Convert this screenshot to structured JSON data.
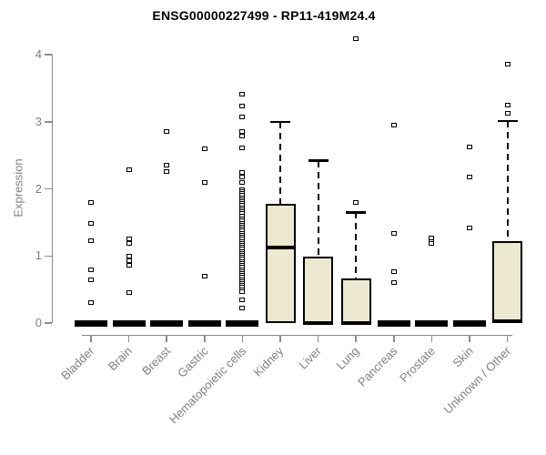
{
  "title": "ENSG00000227499 - RP11-419M24.4",
  "chart_data": {
    "type": "boxplot",
    "title": "ENSG00000227499 - RP11-419M24.4",
    "ylabel": "Expression",
    "xlabel": "",
    "ylim": [
      0,
      4.3
    ],
    "y_ticks": [
      0,
      1,
      2,
      3,
      4
    ],
    "grid": false,
    "legend": null,
    "axis_color": "#8a8a8a",
    "tick_text_color": "#808080",
    "box_fill_color": "#ede8d0",
    "box_border_color": "#000000",
    "categories": [
      "Bladder",
      "Brain",
      "Breast",
      "Gastric",
      "Hematopoietic cells",
      "Kidney",
      "Liver",
      "Lung",
      "Pancreas",
      "Prostate",
      "Skin",
      "Unknown / Other"
    ],
    "boxes": [
      {
        "category": "Bladder",
        "q1": 0,
        "median": 0,
        "q3": 0,
        "whisker_low": 0,
        "whisker_high": 0,
        "outliers": [
          1.8,
          1.49,
          1.23,
          0.8,
          0.65,
          0.3
        ]
      },
      {
        "category": "Brain",
        "q1": 0,
        "median": 0,
        "q3": 0,
        "whisker_low": 0,
        "whisker_high": 0,
        "outliers": [
          2.29,
          1.26,
          1.19,
          0.99,
          0.93,
          0.86,
          0.45
        ]
      },
      {
        "category": "Breast",
        "q1": 0,
        "median": 0,
        "q3": 0,
        "whisker_low": 0,
        "whisker_high": 0,
        "outliers": [
          2.85,
          2.35,
          2.26
        ]
      },
      {
        "category": "Gastric",
        "q1": 0,
        "median": 0,
        "q3": 0,
        "whisker_low": 0,
        "whisker_high": 0,
        "outliers": [
          2.59,
          2.1,
          0.7
        ]
      },
      {
        "category": "Hematopoietic cells",
        "q1": 0,
        "median": 0,
        "q3": 0,
        "whisker_low": 0,
        "whisker_high": 0,
        "outliers": [
          3.41,
          3.24,
          3.07,
          2.85,
          2.78,
          2.61,
          2.24,
          2.17,
          2.1,
          1.99,
          1.96,
          1.93,
          1.9,
          1.87,
          1.84,
          1.81,
          1.78,
          1.75,
          1.72,
          1.69,
          1.66,
          1.63,
          1.6,
          1.55,
          1.52,
          1.49,
          1.46,
          1.43,
          1.4,
          1.37,
          1.34,
          1.31,
          1.28,
          1.25,
          1.22,
          1.19,
          1.16,
          1.13,
          1.1,
          1.07,
          1.04,
          1.01,
          0.98,
          0.95,
          0.92,
          0.89,
          0.86,
          0.83,
          0.8,
          0.77,
          0.74,
          0.71,
          0.68,
          0.65,
          0.62,
          0.59,
          0.56,
          0.53,
          0.5,
          0.47,
          0.34,
          0.23
        ]
      },
      {
        "category": "Kidney",
        "q1": 0,
        "median": 1.13,
        "q3": 1.77,
        "whisker_low": 0,
        "whisker_high": 3.0,
        "outliers": []
      },
      {
        "category": "Liver",
        "q1": 0,
        "median": 0,
        "q3": 0.99,
        "whisker_low": 0,
        "whisker_high": 2.42,
        "outliers": []
      },
      {
        "category": "Lung",
        "q1": 0,
        "median": 0,
        "q3": 0.66,
        "whisker_low": 0,
        "whisker_high": 1.65,
        "outliers": [
          4.24,
          1.79
        ]
      },
      {
        "category": "Pancreas",
        "q1": 0,
        "median": 0,
        "q3": 0,
        "whisker_low": 0,
        "whisker_high": 0,
        "outliers": [
          2.95,
          1.33,
          0.76,
          0.61
        ]
      },
      {
        "category": "Prostate",
        "q1": 0,
        "median": 0,
        "q3": 0,
        "whisker_low": 0,
        "whisker_high": 0,
        "outliers": [
          1.27,
          1.22,
          1.18
        ]
      },
      {
        "category": "Skin",
        "q1": 0,
        "median": 0,
        "q3": 0,
        "whisker_low": 0,
        "whisker_high": 0,
        "outliers": [
          2.62,
          2.17,
          1.42
        ]
      },
      {
        "category": "Unknown / Other",
        "q1": 0,
        "median": 0.03,
        "q3": 1.22,
        "whisker_low": 0,
        "whisker_high": 3.01,
        "outliers": [
          3.86,
          3.25,
          3.13
        ]
      }
    ]
  }
}
